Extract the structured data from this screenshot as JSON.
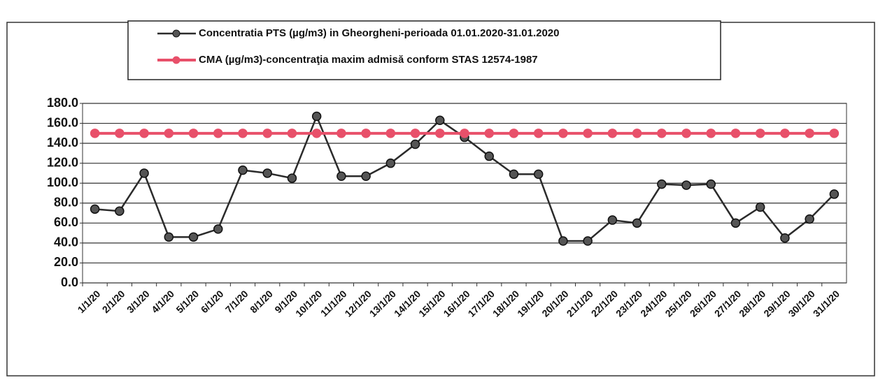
{
  "chart_data": {
    "type": "line",
    "categories": [
      "1/1/20",
      "2/1/20",
      "3/1/20",
      "4/1/20",
      "5/1/20",
      "6/1/20",
      "7/1/20",
      "8/1/20",
      "9/1/20",
      "10/1/20",
      "11/1/20",
      "12/1/20",
      "13/1/20",
      "14/1/20",
      "15/1/20",
      "16/1/20",
      "17/1/20",
      "18/1/20",
      "19/1/20",
      "20/1/20",
      "21/1/20",
      "22/1/20",
      "23/1/20",
      "24/1/20",
      "25/1/20",
      "26/1/20",
      "27/1/20",
      "28/1/20",
      "29/1/20",
      "30/1/20",
      "31/1/20"
    ],
    "series": [
      {
        "name": "Concentratia PTS (µg/m3) in Gheorgheni-perioada 01.01.2020-31.01.2020",
        "color": "#2b2b2b",
        "values": [
          74,
          72,
          110,
          46,
          46,
          54,
          113,
          110,
          105,
          167,
          107,
          107,
          120,
          139,
          163,
          146,
          127,
          109,
          109,
          42,
          42,
          63,
          60,
          99,
          98,
          99,
          60,
          76,
          45,
          64,
          89
        ]
      },
      {
        "name": "CMA (µg/m3)-concentraţia maxim admisă conform STAS 12574-1987",
        "color": "#e8506a",
        "values": [
          150,
          150,
          150,
          150,
          150,
          150,
          150,
          150,
          150,
          150,
          150,
          150,
          150,
          150,
          150,
          150,
          150,
          150,
          150,
          150,
          150,
          150,
          150,
          150,
          150,
          150,
          150,
          150,
          150,
          150,
          150
        ]
      }
    ],
    "ylim": [
      0,
      180
    ],
    "yticks": [
      {
        "value": 0,
        "label": "0.0"
      },
      {
        "value": 20,
        "label": "20.0"
      },
      {
        "value": 40,
        "label": "40.0"
      },
      {
        "value": 60,
        "label": "60.0"
      },
      {
        "value": 80,
        "label": "80.0"
      },
      {
        "value": 100,
        "label": "100.0"
      },
      {
        "value": 120,
        "label": "120.0"
      },
      {
        "value": 140,
        "label": "140.0"
      },
      {
        "value": 160,
        "label": "160.0"
      },
      {
        "value": 180,
        "label": "180.0"
      }
    ],
    "grid": true
  }
}
